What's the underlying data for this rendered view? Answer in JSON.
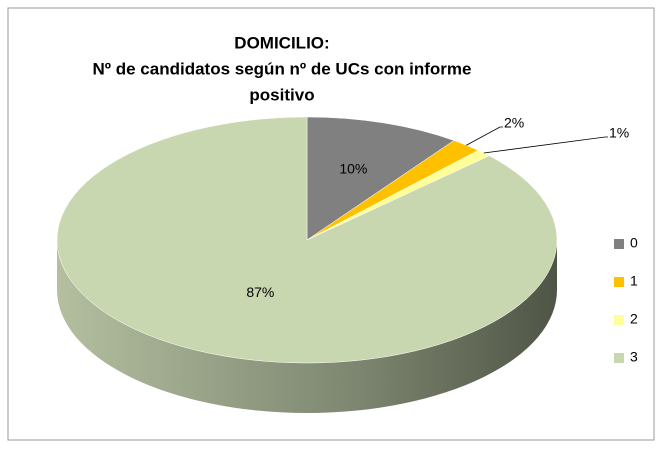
{
  "chart_data": {
    "type": "pie",
    "title": [
      "DOMICILIO:",
      "Nº de candidatos según nº de UCs con informe",
      "positivo"
    ],
    "categories": [
      "0",
      "1",
      "2",
      "3"
    ],
    "values": [
      10,
      2,
      1,
      87
    ],
    "value_labels": [
      "10%",
      "2%",
      "1%",
      "87%"
    ],
    "colors": [
      "#808080",
      "#ffc000",
      "#ffff99",
      "#c9d7b0"
    ],
    "legend": "right"
  }
}
